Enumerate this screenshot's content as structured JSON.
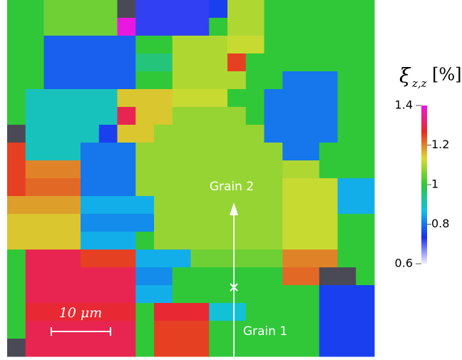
{
  "chart_data": {
    "type": "heatmap",
    "colorbar_label": {
      "symbol": "ξ",
      "subscript": "z,z",
      "unit": "[%]"
    },
    "zlim": [
      0.6,
      1.4
    ],
    "zticks": [
      0.6,
      0.8,
      1,
      1.2,
      1.4
    ],
    "colorscale": [
      "#f2f0ff",
      "#1c2cf0",
      "#10c0e8",
      "#30c838",
      "#d8dc30",
      "#e82a20",
      "#e818e0"
    ],
    "null_color": "#4a4a56",
    "annotations": [
      "Grain 2",
      "Grain 1"
    ],
    "scale_bar": "10 μm",
    "z": [
      [
        1.0,
        1.0,
        1.05,
        1.05,
        1.05,
        1.05,
        null,
        0.72,
        0.72,
        0.72,
        0.72,
        0.75,
        1.1,
        1.1,
        1.0,
        1.0,
        1.0,
        1.0,
        1.0,
        1.0
      ],
      [
        1.0,
        1.0,
        1.05,
        1.05,
        1.05,
        1.05,
        1.4,
        0.72,
        0.72,
        0.72,
        0.72,
        1.0,
        1.1,
        1.1,
        1.0,
        1.0,
        1.0,
        1.0,
        1.0,
        1.0
      ],
      [
        1.0,
        1.0,
        0.78,
        0.78,
        0.78,
        0.78,
        0.78,
        1.0,
        1.0,
        1.1,
        1.1,
        1.1,
        1.12,
        1.12,
        1.0,
        1.0,
        1.0,
        1.0,
        1.0,
        1.0
      ],
      [
        1.0,
        1.0,
        0.78,
        0.78,
        0.78,
        0.78,
        0.78,
        0.95,
        0.95,
        1.1,
        1.1,
        1.1,
        1.25,
        1.0,
        1.0,
        1.0,
        1.0,
        1.0,
        1.0,
        1.0
      ],
      [
        1.0,
        1.0,
        0.78,
        0.78,
        0.78,
        0.78,
        0.78,
        1.0,
        1.0,
        1.1,
        1.1,
        1.1,
        1.1,
        1.0,
        1.0,
        0.8,
        0.8,
        0.8,
        1.0,
        1.0
      ],
      [
        1.0,
        0.9,
        0.9,
        0.9,
        0.9,
        0.9,
        1.15,
        1.15,
        1.15,
        1.12,
        1.12,
        1.12,
        1.0,
        1.0,
        0.8,
        0.8,
        0.8,
        0.8,
        1.0,
        1.0
      ],
      [
        1.0,
        0.9,
        0.9,
        0.9,
        0.9,
        0.9,
        1.3,
        1.15,
        1.15,
        1.08,
        1.08,
        1.08,
        1.08,
        1.0,
        0.8,
        0.8,
        0.8,
        0.8,
        1.0,
        1.0
      ],
      [
        null,
        0.9,
        0.9,
        0.9,
        0.9,
        0.75,
        1.15,
        1.15,
        1.08,
        1.08,
        1.08,
        1.08,
        1.08,
        1.08,
        0.8,
        0.8,
        0.8,
        0.8,
        1.0,
        1.0
      ],
      [
        1.25,
        0.9,
        0.9,
        0.9,
        0.8,
        0.8,
        0.8,
        1.08,
        1.08,
        1.08,
        1.08,
        1.08,
        1.08,
        1.08,
        1.08,
        0.8,
        0.8,
        1.0,
        1.0,
        1.0
      ],
      [
        1.25,
        1.2,
        1.2,
        1.2,
        0.8,
        0.8,
        0.8,
        1.08,
        1.08,
        1.08,
        1.08,
        1.08,
        1.08,
        1.08,
        1.08,
        1.1,
        1.1,
        1.0,
        1.0,
        1.0
      ],
      [
        1.25,
        1.22,
        1.22,
        1.22,
        0.8,
        0.8,
        0.8,
        1.08,
        1.08,
        1.08,
        1.08,
        1.08,
        1.08,
        1.08,
        1.08,
        1.12,
        1.12,
        1.12,
        0.85,
        0.85
      ],
      [
        1.18,
        1.18,
        1.18,
        1.18,
        0.85,
        0.85,
        0.85,
        0.85,
        1.08,
        1.08,
        1.08,
        1.08,
        1.08,
        1.08,
        1.08,
        1.12,
        1.12,
        1.12,
        0.85,
        0.85
      ],
      [
        1.15,
        1.15,
        1.15,
        1.15,
        0.82,
        0.82,
        0.82,
        0.82,
        1.08,
        1.08,
        1.08,
        1.08,
        1.08,
        1.08,
        1.08,
        1.12,
        1.12,
        1.12,
        1.0,
        1.0
      ],
      [
        1.15,
        1.15,
        1.15,
        1.15,
        0.85,
        0.85,
        0.85,
        1.0,
        1.08,
        1.08,
        1.08,
        1.08,
        1.08,
        1.08,
        1.08,
        1.12,
        1.12,
        1.12,
        1.0,
        1.0
      ],
      [
        1.0,
        1.3,
        1.3,
        1.3,
        1.25,
        1.25,
        1.25,
        0.85,
        0.85,
        0.85,
        1.05,
        1.05,
        1.05,
        1.05,
        1.05,
        1.2,
        1.2,
        1.2,
        1.0,
        1.0
      ],
      [
        1.0,
        1.3,
        1.3,
        1.3,
        1.3,
        1.3,
        1.3,
        0.82,
        0.82,
        1.0,
        1.0,
        1.0,
        1.0,
        1.0,
        1.0,
        1.22,
        1.22,
        null,
        null,
        1.0
      ],
      [
        1.0,
        1.3,
        1.3,
        1.3,
        1.3,
        1.3,
        1.3,
        0.85,
        0.85,
        1.0,
        1.0,
        1.0,
        1.0,
        1.0,
        1.0,
        1.0,
        1.0,
        0.75,
        0.75,
        0.75
      ],
      [
        1.0,
        1.28,
        1.28,
        1.28,
        1.28,
        1.28,
        1.28,
        1.0,
        1.28,
        1.28,
        1.28,
        0.88,
        0.88,
        1.0,
        1.0,
        1.0,
        1.0,
        0.75,
        0.75,
        0.75
      ],
      [
        1.0,
        1.3,
        1.3,
        1.3,
        1.3,
        1.3,
        1.3,
        1.0,
        1.25,
        1.25,
        1.25,
        1.0,
        1.0,
        1.0,
        1.0,
        1.0,
        1.0,
        0.75,
        0.75,
        0.75
      ],
      [
        null,
        1.3,
        1.3,
        1.3,
        1.3,
        1.3,
        1.3,
        1.0,
        1.25,
        1.25,
        1.25,
        1.0,
        1.0,
        1.0,
        1.0,
        1.0,
        1.0,
        0.75,
        0.75,
        0.75
      ]
    ]
  }
}
